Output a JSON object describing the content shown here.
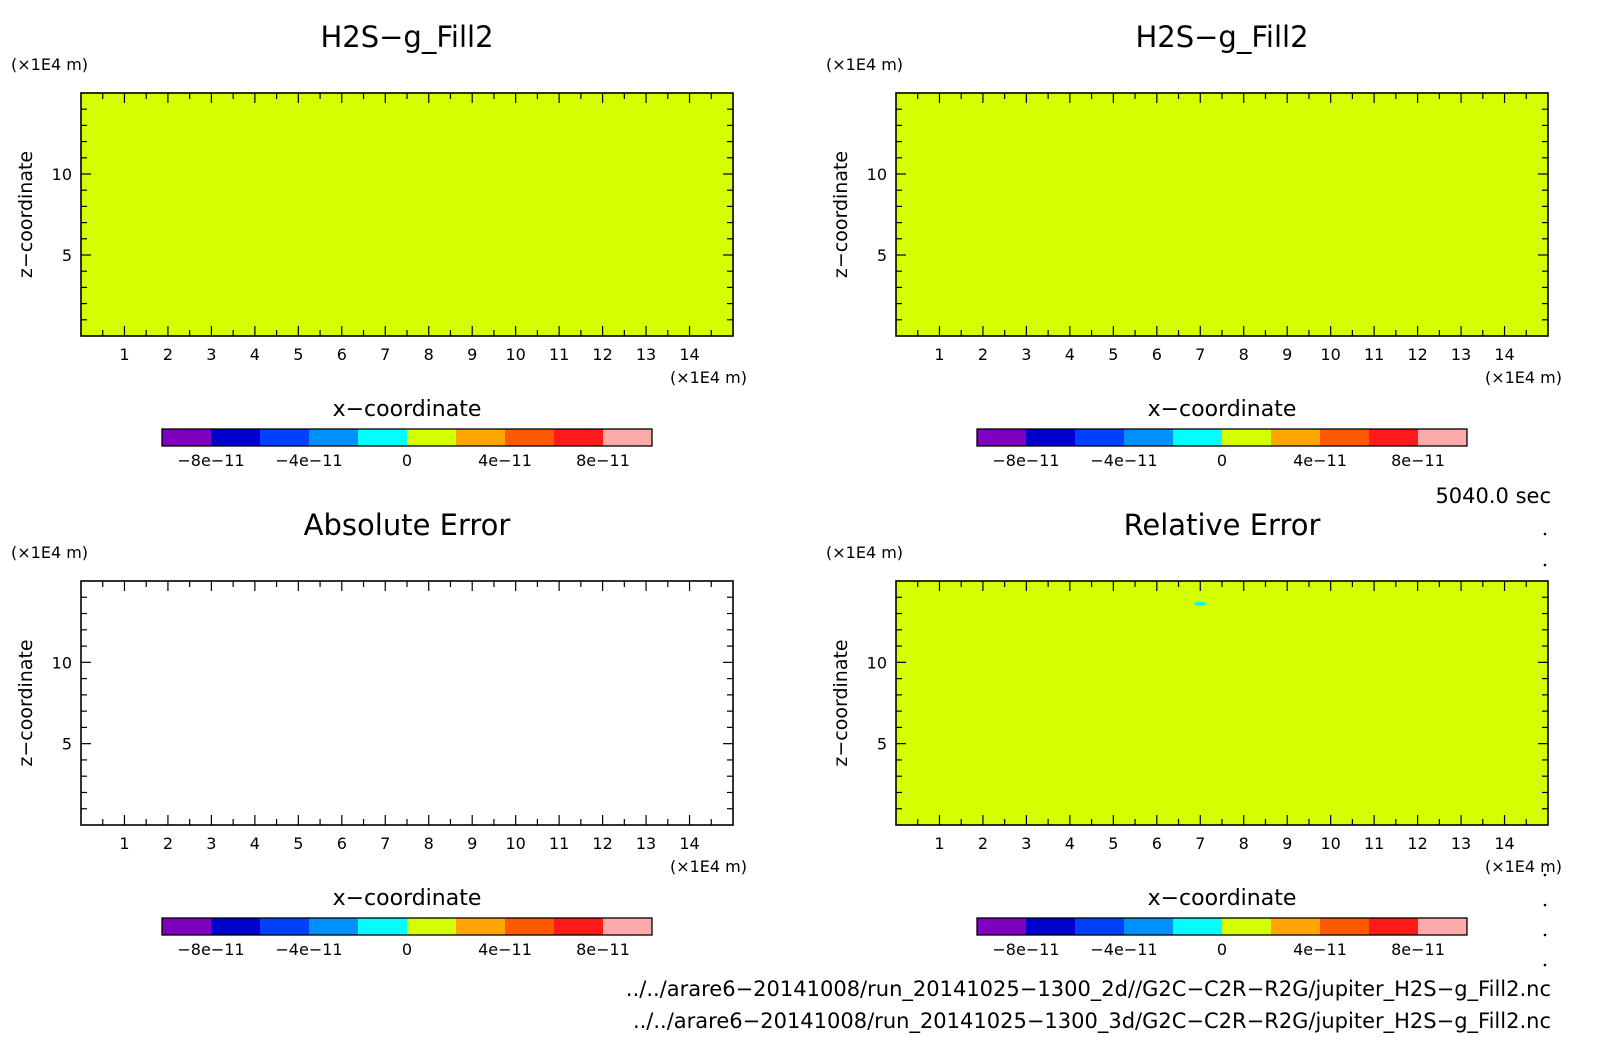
{
  "chart_data": [
    {
      "type": "heatmap",
      "title": "H2S−g_Fill2",
      "xlabel": "x−coordinate",
      "ylabel": "z−coordinate",
      "x_unit": "(×1E4 m)",
      "y_unit": "(×1E4 m)",
      "xlim": [
        0,
        15
      ],
      "ylim": [
        0,
        15
      ],
      "x_ticks": [
        "1",
        "2",
        "3",
        "4",
        "5",
        "6",
        "7",
        "8",
        "9",
        "10",
        "11",
        "12",
        "13",
        "14"
      ],
      "y_ticks": [
        "5",
        "10"
      ],
      "fill_color": "#d4ff00",
      "fill_value": 0
    },
    {
      "type": "heatmap",
      "title": "H2S−g_Fill2",
      "xlabel": "x−coordinate",
      "ylabel": "z−coordinate",
      "x_unit": "(×1E4 m)",
      "y_unit": "(×1E4 m)",
      "xlim": [
        0,
        15
      ],
      "ylim": [
        0,
        15
      ],
      "x_ticks": [
        "1",
        "2",
        "3",
        "4",
        "5",
        "6",
        "7",
        "8",
        "9",
        "10",
        "11",
        "12",
        "13",
        "14"
      ],
      "y_ticks": [
        "5",
        "10"
      ],
      "fill_color": "#d4ff00",
      "fill_value": 0
    },
    {
      "type": "heatmap",
      "title": "Absolute Error",
      "xlabel": "x−coordinate",
      "ylabel": "z−coordinate",
      "x_unit": "(×1E4 m)",
      "y_unit": "(×1E4 m)",
      "xlim": [
        0,
        15
      ],
      "ylim": [
        0,
        15
      ],
      "x_ticks": [
        "1",
        "2",
        "3",
        "4",
        "5",
        "6",
        "7",
        "8",
        "9",
        "10",
        "11",
        "12",
        "13",
        "14"
      ],
      "y_ticks": [
        "5",
        "10"
      ],
      "fill_color": "#ffffff",
      "fill_value": null
    },
    {
      "type": "heatmap",
      "title": "Relative Error",
      "xlabel": "x−coordinate",
      "ylabel": "z−coordinate",
      "x_unit": "(×1E4 m)",
      "y_unit": "(×1E4 m)",
      "xlim": [
        0,
        15
      ],
      "ylim": [
        0,
        15
      ],
      "x_ticks": [
        "1",
        "2",
        "3",
        "4",
        "5",
        "6",
        "7",
        "8",
        "9",
        "10",
        "11",
        "12",
        "13",
        "14"
      ],
      "y_ticks": [
        "5",
        "10"
      ],
      "fill_color": "#d4ff00",
      "fill_value": 0,
      "anomalies": [
        {
          "x": 7.0,
          "z": 13.6,
          "color": "#00ffff"
        }
      ]
    }
  ],
  "colorbar": {
    "colors": [
      "#7f00bf",
      "#0000cd",
      "#0040ff",
      "#0090ff",
      "#00ffff",
      "#d4ff00",
      "#ffa500",
      "#ff5a00",
      "#ff1a1a",
      "#ffaaaa"
    ],
    "bounds": [
      -1e-10,
      -8e-11,
      -6e-11,
      -4e-11,
      -2e-11,
      0,
      2e-11,
      4e-11,
      6e-11,
      8e-11,
      1e-10
    ],
    "labels": [
      {
        "value": -8e-11,
        "text": "−8e−11"
      },
      {
        "value": -4e-11,
        "text": "−4e−11"
      },
      {
        "value": 0,
        "text": "0"
      },
      {
        "value": 4e-11,
        "text": "4e−11"
      },
      {
        "value": 8e-11,
        "text": "8e−11"
      }
    ]
  },
  "time_label": "5040.0 sec",
  "footer": {
    "line1": "../../arare6−20141008/run_20141025−1300_2d//G2C−C2R−R2G/jupiter_H2S−g_Fill2.nc",
    "line2": "../../arare6−20141008/run_20141025−1300_3d/G2C−C2R−R2G/jupiter_H2S−g_Fill2.nc"
  },
  "colors": {
    "default_fill": "#d4ff00",
    "background": "#ffffff",
    "axis": "#000000"
  }
}
